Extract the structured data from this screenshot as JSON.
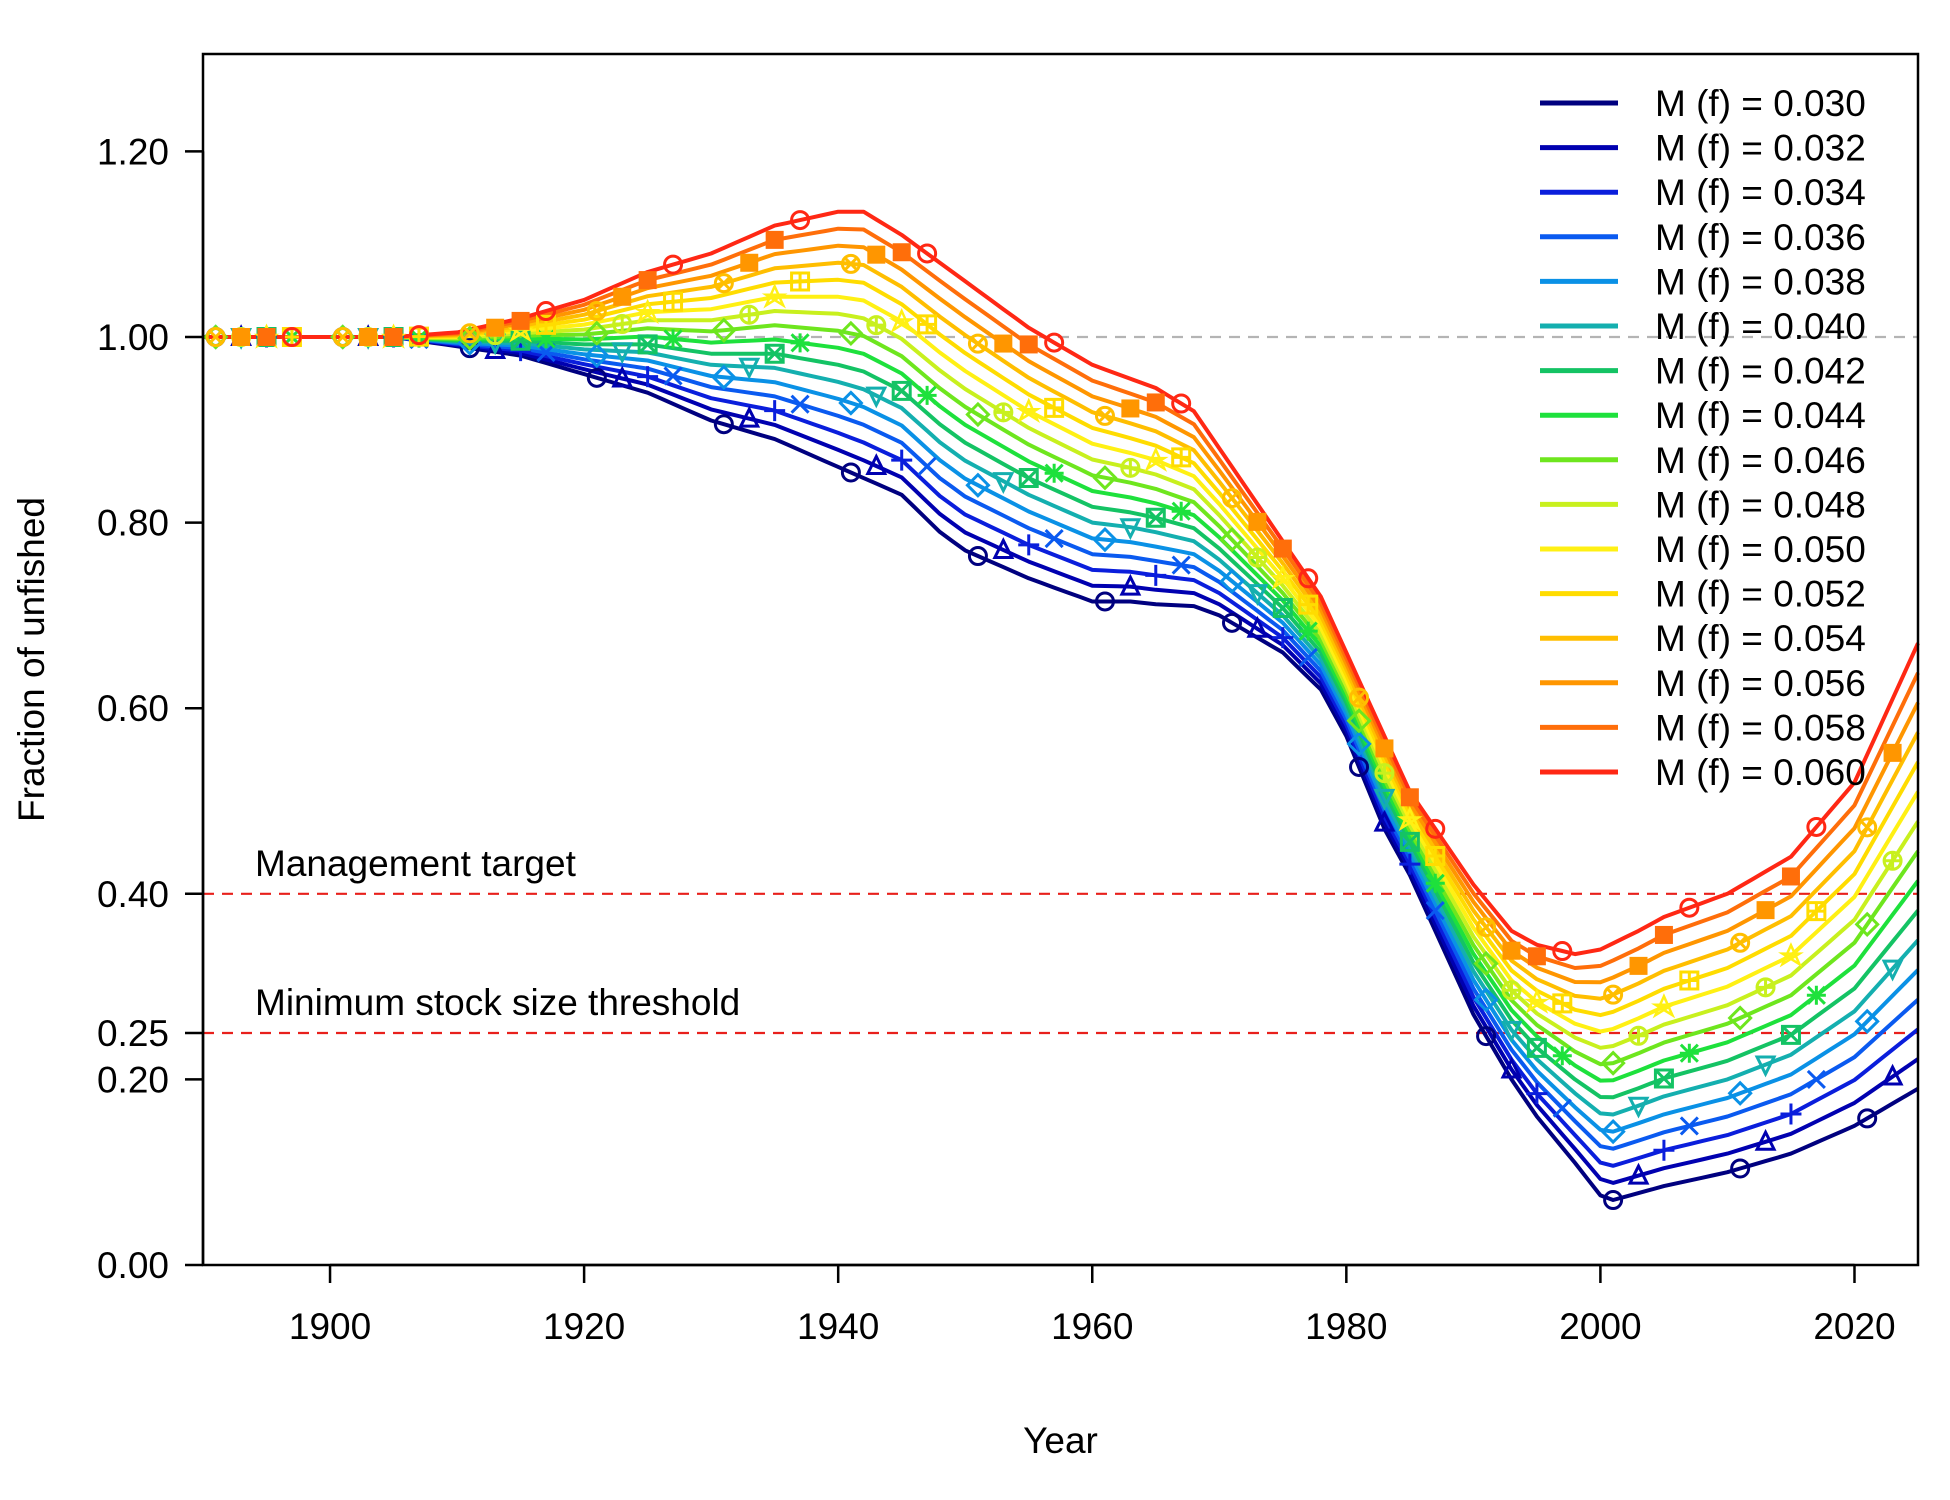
{
  "chart_data": {
    "type": "line",
    "xlabel": "Year",
    "ylabel": "Fraction of unfished",
    "xlim": [
      1890,
      2025
    ],
    "ylim": [
      0,
      1.3
    ],
    "xticks": [
      1900,
      1920,
      1940,
      1960,
      1980,
      2000,
      2020
    ],
    "xtick_labels": [
      "1900",
      "1920",
      "1940",
      "1960",
      "1980",
      "2000",
      "2020"
    ],
    "yticks": [
      0,
      0.2,
      0.25,
      0.4,
      0.6,
      0.8,
      1.0,
      1.2
    ],
    "ytick_labels": [
      "0.00",
      "0.20",
      "0.25",
      "0.40",
      "0.60",
      "0.80",
      "1.00",
      "1.20"
    ],
    "grid": false,
    "legend_position": "top-right",
    "reference_lines": [
      {
        "y": 1.0,
        "color": "#b4b4b4",
        "style": "dashed",
        "label": ""
      },
      {
        "y": 0.4,
        "color": "#e8201c",
        "style": "dashed",
        "label": "Management target"
      },
      {
        "y": 0.25,
        "color": "#e8201c",
        "style": "dashed",
        "label": "Minimum stock size threshold"
      }
    ],
    "low_curve": {
      "x": [
        1890,
        1905,
        1910,
        1915,
        1920,
        1925,
        1930,
        1935,
        1940,
        1945,
        1948,
        1950,
        1955,
        1960,
        1963,
        1965,
        1968,
        1970,
        1975,
        1978,
        1980,
        1983,
        1985,
        1988,
        1990,
        1993,
        1995,
        1998,
        2000,
        2001,
        2005,
        2010,
        2015,
        2020,
        2025
      ],
      "y": [
        1.0,
        1.0,
        0.99,
        0.98,
        0.96,
        0.94,
        0.91,
        0.89,
        0.86,
        0.83,
        0.79,
        0.77,
        0.74,
        0.715,
        0.715,
        0.712,
        0.71,
        0.7,
        0.66,
        0.62,
        0.57,
        0.47,
        0.42,
        0.33,
        0.27,
        0.2,
        0.16,
        0.11,
        0.075,
        0.07,
        0.085,
        0.1,
        0.12,
        0.15,
        0.19
      ]
    },
    "high_curve": {
      "x": [
        1890,
        1905,
        1910,
        1915,
        1920,
        1925,
        1930,
        1935,
        1940,
        1942,
        1945,
        1950,
        1955,
        1960,
        1963,
        1965,
        1968,
        1970,
        1975,
        1978,
        1980,
        1983,
        1985,
        1988,
        1990,
        1993,
        1995,
        1998,
        2000,
        2003,
        2005,
        2010,
        2015,
        2020,
        2025
      ],
      "y": [
        1.0,
        1.0,
        1.005,
        1.02,
        1.04,
        1.07,
        1.09,
        1.12,
        1.135,
        1.135,
        1.11,
        1.06,
        1.01,
        0.97,
        0.955,
        0.945,
        0.92,
        0.88,
        0.78,
        0.72,
        0.66,
        0.57,
        0.51,
        0.45,
        0.41,
        0.36,
        0.345,
        0.335,
        0.34,
        0.36,
        0.375,
        0.4,
        0.44,
        0.52,
        0.67
      ]
    },
    "series": [
      {
        "name": "M (f) = 0.030",
        "color": "#00007f",
        "marker": "circle"
      },
      {
        "name": "M (f) = 0.032",
        "color": "#0000b0",
        "marker": "triangle"
      },
      {
        "name": "M (f) = 0.034",
        "color": "#0a1edc",
        "marker": "plus"
      },
      {
        "name": "M (f) = 0.036",
        "color": "#0a5af0",
        "marker": "x"
      },
      {
        "name": "M (f) = 0.038",
        "color": "#0a91e6",
        "marker": "diamond"
      },
      {
        "name": "M (f) = 0.040",
        "color": "#14afaf",
        "marker": "triangle-down"
      },
      {
        "name": "M (f) = 0.042",
        "color": "#14c364",
        "marker": "square-x"
      },
      {
        "name": "M (f) = 0.044",
        "color": "#1ee13c",
        "marker": "asterisk"
      },
      {
        "name": "M (f) = 0.046",
        "color": "#6ee61e",
        "marker": "diamond"
      },
      {
        "name": "M (f) = 0.048",
        "color": "#c8f01e",
        "marker": "circle-plus"
      },
      {
        "name": "M (f) = 0.050",
        "color": "#fff014",
        "marker": "star"
      },
      {
        "name": "M (f) = 0.052",
        "color": "#ffdc00",
        "marker": "square-plus"
      },
      {
        "name": "M (f) = 0.054",
        "color": "#ffbe00",
        "marker": "circle-x"
      },
      {
        "name": "M (f) = 0.056",
        "color": "#ff9600",
        "marker": "square"
      },
      {
        "name": "M (f) = 0.058",
        "color": "#ff6e0a",
        "marker": "square"
      },
      {
        "name": "M (f) = 0.060",
        "color": "#ff2814",
        "marker": "circle"
      }
    ]
  }
}
